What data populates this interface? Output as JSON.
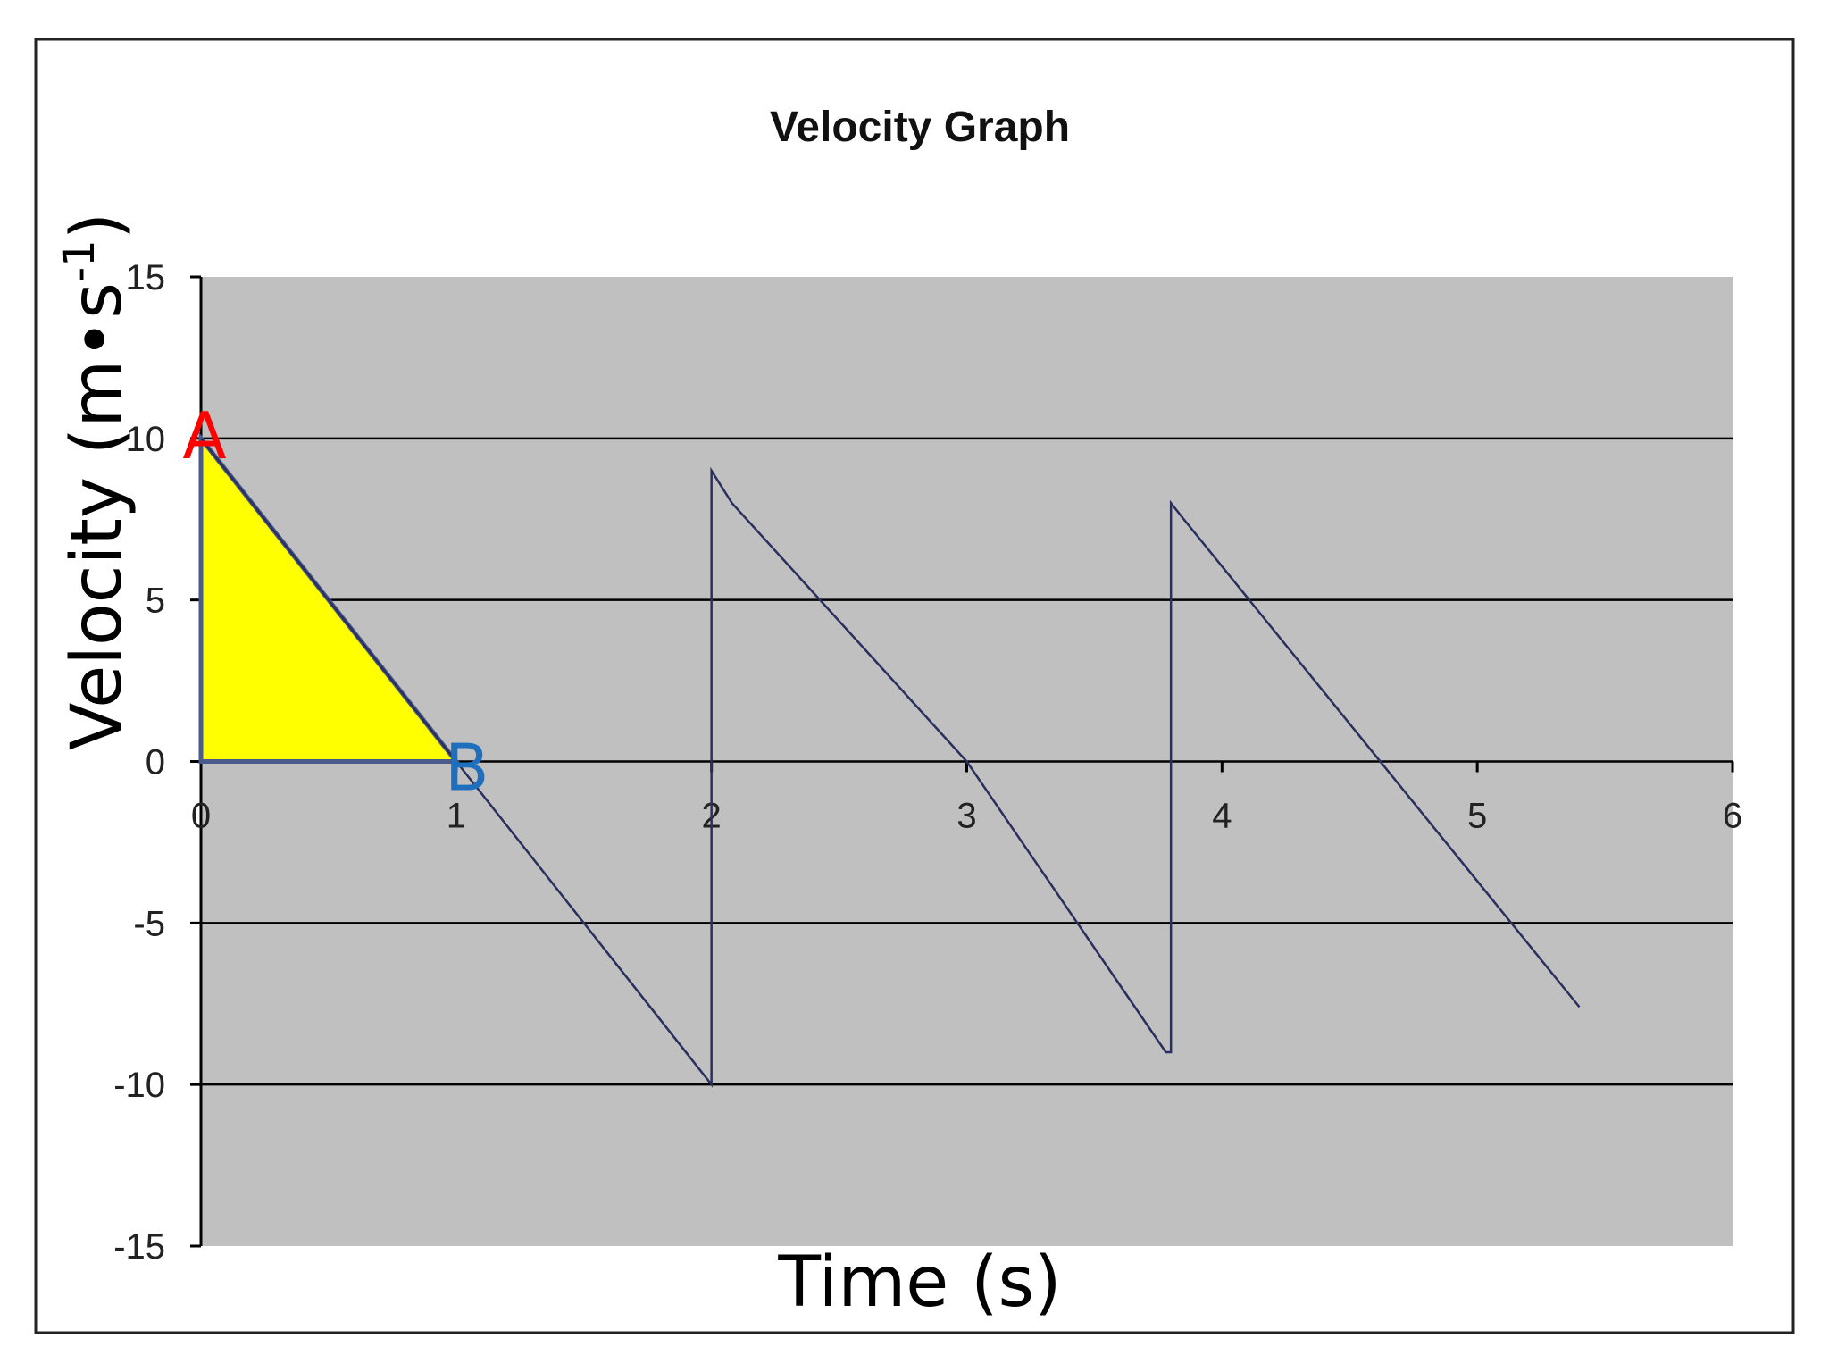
{
  "chart_data": {
    "type": "line",
    "title": "Velocity Graph",
    "xlabel": "Time (s)",
    "ylabel": "Velocity (m•s",
    "ylabel_superscript": "-1",
    "ylabel_close": ")",
    "xlim": [
      0,
      6
    ],
    "ylim": [
      -15,
      15
    ],
    "x_ticks": [
      0,
      1,
      2,
      3,
      4,
      5,
      6
    ],
    "y_ticks": [
      15,
      10,
      5,
      0,
      -5,
      -10,
      -15
    ],
    "x_tick_labels": [
      "0",
      "1",
      "2",
      "3",
      "4",
      "5",
      "6"
    ],
    "y_tick_labels": [
      "15",
      "10",
      "5",
      "0",
      "-5",
      "-10",
      "-15"
    ],
    "grid": "horizontal",
    "plot_background": "#c0c0c0",
    "series": [
      {
        "color": "#2b2f5e",
        "x": [
          0,
          1,
          1.8,
          2.0,
          2.0,
          2.08,
          3.0,
          3.65,
          3.78,
          3.8,
          3.8,
          3.85,
          5.4
        ],
        "y": [
          10,
          0,
          -8,
          -10,
          9,
          8,
          0,
          -7.5,
          -9,
          -9,
          8,
          7.5,
          -7.6
        ]
      }
    ],
    "shaded_region": {
      "fill": "#ffff00",
      "stroke": "#4a5a8c",
      "points": [
        [
          0,
          10
        ],
        [
          1,
          0
        ],
        [
          0,
          0
        ]
      ]
    },
    "annotations": [
      {
        "text": "A",
        "x": 0,
        "y": 10,
        "color": "#ff0000"
      },
      {
        "text": "B",
        "x": 1,
        "y": 0,
        "color": "#1f6fbf"
      }
    ]
  }
}
